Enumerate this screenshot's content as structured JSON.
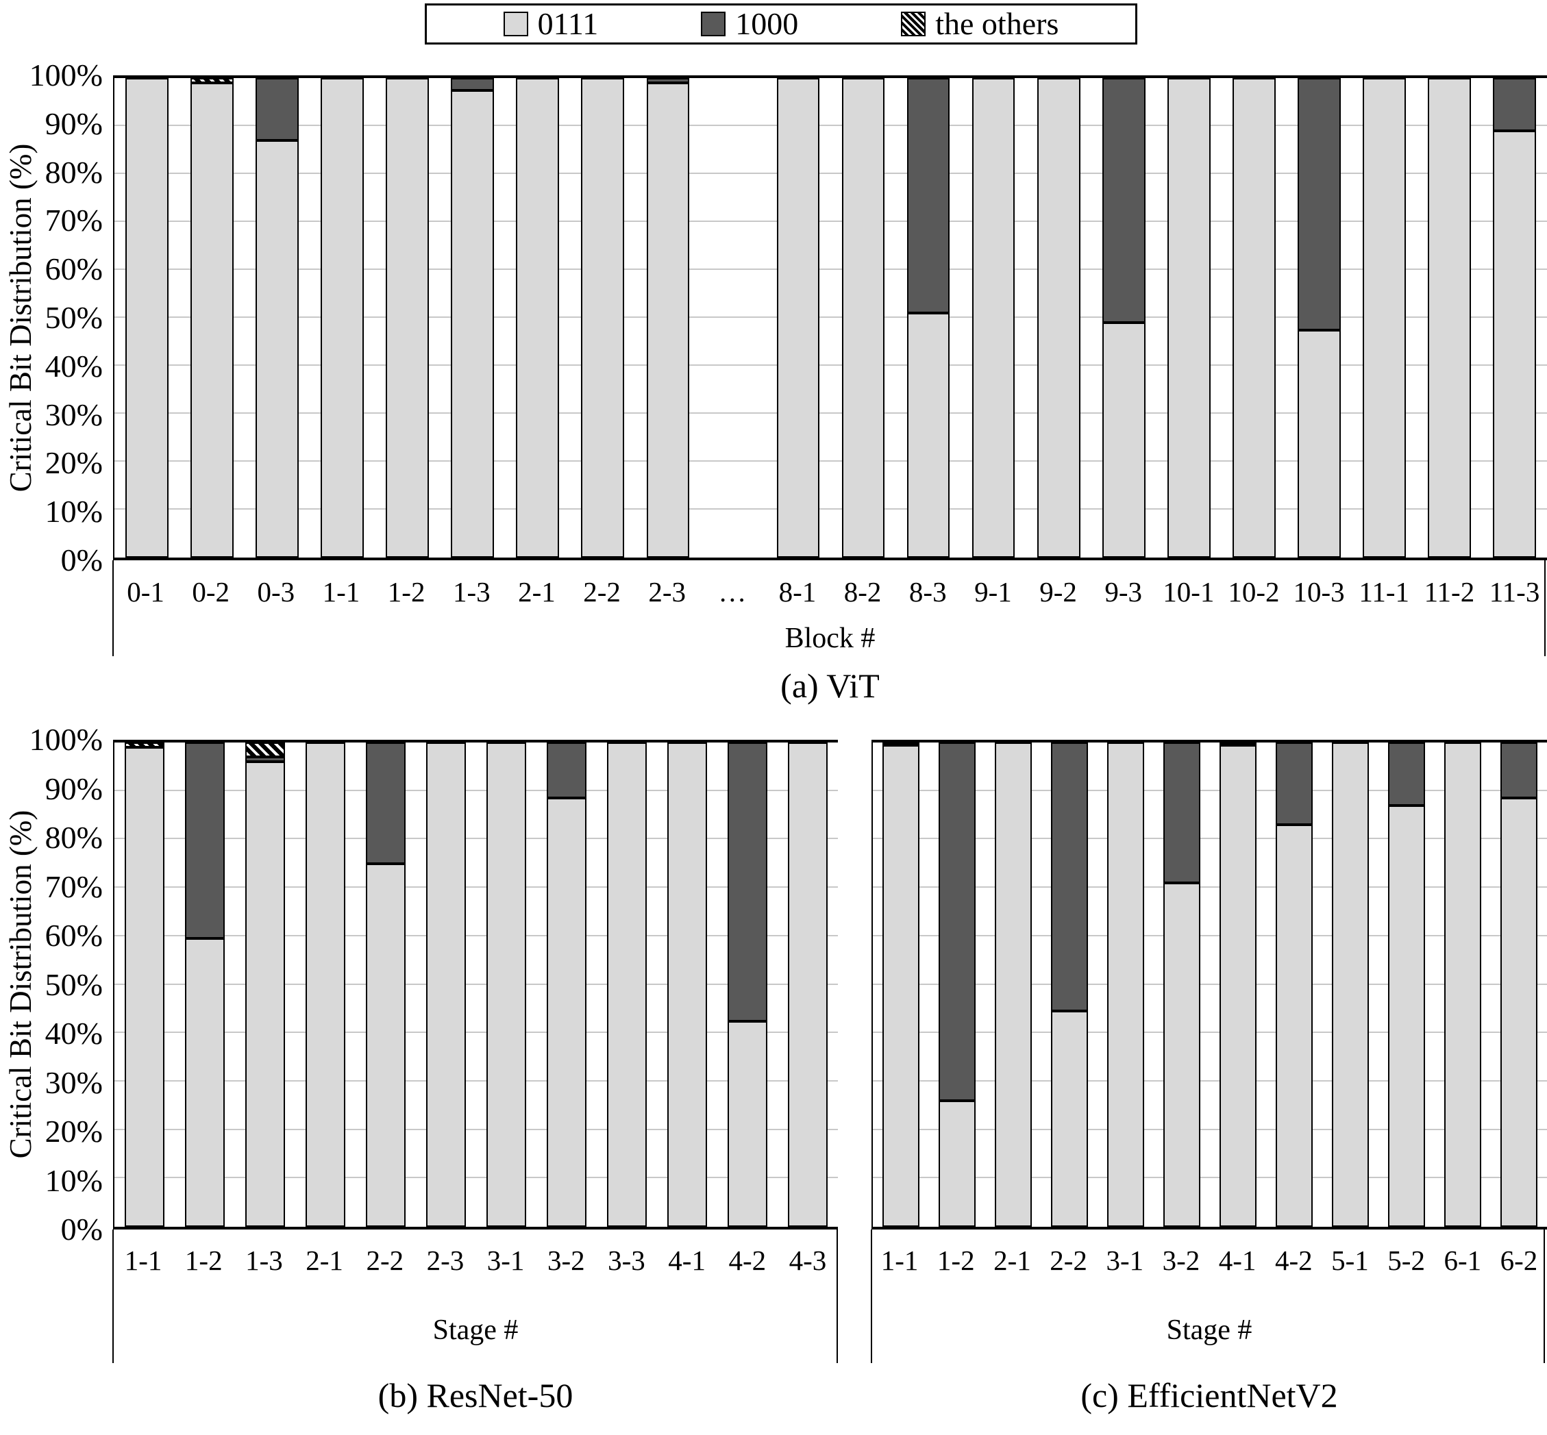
{
  "colors": {
    "light": "#d9d9d9",
    "dark": "#595959",
    "grid": "#c8c8c8",
    "axis": "#000000"
  },
  "legend": {
    "items": [
      {
        "label": "0111",
        "swatch": "light"
      },
      {
        "label": "1000",
        "swatch": "dark"
      },
      {
        "label": "the others",
        "swatch": "hatch"
      }
    ]
  },
  "y_axis": {
    "title": "Critical Bit Distribution (%)",
    "ticks": [
      "100%",
      "90%",
      "80%",
      "70%",
      "60%",
      "50%",
      "40%",
      "30%",
      "20%",
      "10%",
      "0%"
    ]
  },
  "chart_data": [
    {
      "id": "vit",
      "type": "bar",
      "stacked": true,
      "title": "(a) ViT",
      "xlabel": "Block #",
      "ylabel": "Critical Bit Distribution (%)",
      "ylim": [
        0,
        100
      ],
      "grid": true,
      "legend_position": "top",
      "categories": [
        "0-1",
        "0-2",
        "0-3",
        "1-1",
        "1-2",
        "1-3",
        "2-1",
        "2-2",
        "2-3",
        "…",
        "8-1",
        "8-2",
        "8-3",
        "9-1",
        "9-2",
        "9-3",
        "10-1",
        "10-2",
        "10-3",
        "11-1",
        "11-2",
        "11-3"
      ],
      "series": [
        {
          "name": "0111",
          "values": [
            100,
            99,
            87,
            100,
            100,
            97.5,
            100,
            100,
            99,
            null,
            100,
            100,
            51,
            100,
            100,
            49,
            100,
            100,
            47.5,
            100,
            100,
            89
          ]
        },
        {
          "name": "1000",
          "values": [
            0,
            0,
            13,
            0,
            0,
            2.5,
            0,
            0,
            1,
            null,
            0,
            0,
            49,
            0,
            0,
            51,
            0,
            0,
            52.5,
            0,
            0,
            11
          ]
        },
        {
          "name": "the others",
          "values": [
            0,
            1,
            0,
            0,
            0,
            0,
            0,
            0,
            0,
            null,
            0,
            0,
            0,
            0,
            0,
            0,
            0,
            0,
            0,
            0,
            0,
            0
          ]
        }
      ]
    },
    {
      "id": "resnet50",
      "type": "bar",
      "stacked": true,
      "title": "(b) ResNet-50",
      "xlabel": "Stage #",
      "ylabel": "Critical Bit Distribution (%)",
      "ylim": [
        0,
        100
      ],
      "grid": true,
      "categories": [
        "1-1",
        "1-2",
        "1-3",
        "2-1",
        "2-2",
        "2-3",
        "3-1",
        "3-2",
        "3-3",
        "4-1",
        "4-2",
        "4-3"
      ],
      "series": [
        {
          "name": "0111",
          "values": [
            99,
            59.5,
            96,
            100,
            75,
            100,
            100,
            88.5,
            100,
            100,
            42.5,
            100
          ]
        },
        {
          "name": "1000",
          "values": [
            0,
            40.5,
            1,
            0,
            25,
            0,
            0,
            11.5,
            0,
            0,
            57.5,
            0
          ]
        },
        {
          "name": "the others",
          "values": [
            1,
            0,
            3,
            0,
            0,
            0,
            0,
            0,
            0,
            0,
            0,
            0
          ]
        }
      ]
    },
    {
      "id": "efficientnetv2",
      "type": "bar",
      "stacked": true,
      "title": "(c) EfficientNetV2",
      "xlabel": "Stage #",
      "ylabel": "Critical Bit Distribution (%)",
      "ylim": [
        0,
        100
      ],
      "grid": true,
      "categories": [
        "1-1",
        "1-2",
        "2-1",
        "2-2",
        "3-1",
        "3-2",
        "4-1",
        "4-2",
        "5-1",
        "5-2",
        "6-1",
        "6-2"
      ],
      "series": [
        {
          "name": "0111",
          "values": [
            99.5,
            26,
            100,
            44.5,
            100,
            71,
            99.5,
            83,
            100,
            87,
            100,
            88.5
          ]
        },
        {
          "name": "1000",
          "values": [
            0.5,
            74,
            0,
            55.5,
            0,
            29,
            0.5,
            17,
            0,
            13,
            0,
            11.5
          ]
        },
        {
          "name": "the others",
          "values": [
            0,
            0,
            0,
            0,
            0,
            0,
            0,
            0,
            0,
            0,
            0,
            0
          ]
        }
      ]
    }
  ]
}
